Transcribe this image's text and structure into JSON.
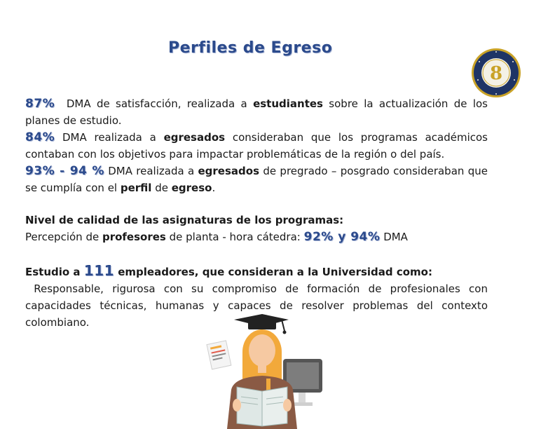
{
  "title": "Perfiles de Egreso",
  "stats": [
    {
      "value": "87%",
      "text_a": "  DMA de satisfacción, realizada a ",
      "strong_a": "estudiantes",
      "text_b": " sobre la actualización de los planes de estudio."
    },
    {
      "value": "84%",
      "text_a": " DMA realizada a ",
      "strong_a": "egresados",
      "text_b": " consideraban que los programas académicos contaban con los objetivos para impactar problemáticas de la región o del país."
    },
    {
      "value": "93% - 94 %",
      "text_a": " DMA realizada a ",
      "strong_a": "egresados",
      "text_b": " de pregrado – posgrado consideraban que se cumplía con el ",
      "strong_b": "perfil",
      "text_c": " de ",
      "strong_c": "egreso",
      "text_d": "."
    }
  ],
  "quality": {
    "heading": "Nivel de calidad de las asignaturas de los programas:",
    "text_a": "Percepción de ",
    "strong_a": "profesores",
    "text_b": " de planta - hora cátedra: ",
    "value": "92% y 94%",
    "text_c": " DMA"
  },
  "employers": {
    "heading_a": "Estudio a ",
    "value": "111",
    "heading_b": " empleadores, que consideran a la Universidad como:",
    "text": " Responsable, rigurosa con su compromiso de formación de profesionales con capacidades técnicas, humanas y capaces de resolver problemas del contexto colombiano."
  },
  "seal_icon": "institution-seal-icon",
  "illustration_icon": "graduate-reading-at-computer-icon",
  "colors": {
    "accent": "#2b4a8c",
    "seal_ring": "#1f3466",
    "seal_gold": "#c9a227"
  }
}
